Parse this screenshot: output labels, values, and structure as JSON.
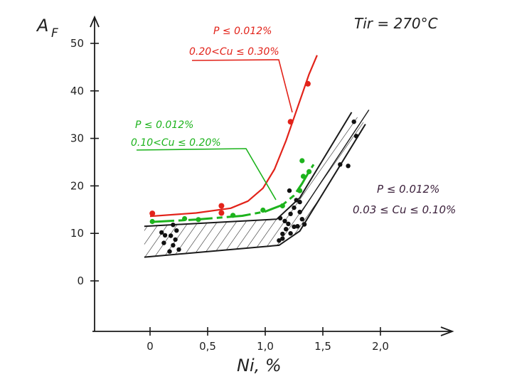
{
  "chart_data": {
    "type": "scatter",
    "title": "T_ir = 270°C",
    "title_text": "Tir = 270°C",
    "xlabel": "Ni, %",
    "ylabel": "A_F",
    "ylabel_main": "A",
    "ylabel_sub": "F",
    "xlim": [
      -0.4,
      2.6
    ],
    "ylim": [
      -10,
      55
    ],
    "x_ticks": [
      0,
      0.5,
      1.0,
      1.5,
      2.0
    ],
    "x_tick_labels": [
      "0",
      "0,5",
      "1,0",
      "1,5",
      "2,0"
    ],
    "y_ticks": [
      0,
      10,
      20,
      30,
      40,
      50
    ],
    "y_tick_labels": [
      "0",
      "10",
      "20",
      "30",
      "40",
      "50"
    ],
    "grid": false,
    "series": [
      {
        "name": "P ≤ 0.012%, 0.20 < Cu ≤ 0.30%",
        "label_line1": "P ≤ 0.012%",
        "label_line2": "0.20<Cu ≤ 0.30%",
        "color": "#e2231a",
        "points": [
          [
            0.02,
            14.2
          ],
          [
            0.62,
            15.8
          ],
          [
            0.62,
            14.3
          ],
          [
            1.22,
            33.5
          ],
          [
            1.37,
            41.5
          ]
        ],
        "trend": [
          [
            0.0,
            13.6
          ],
          [
            0.4,
            14.3
          ],
          [
            0.7,
            15.3
          ],
          [
            0.85,
            16.8
          ],
          [
            0.98,
            19.5
          ],
          [
            1.08,
            23.5
          ],
          [
            1.18,
            29.5
          ],
          [
            1.28,
            36.5
          ],
          [
            1.38,
            43.5
          ],
          [
            1.45,
            47.5
          ]
        ]
      },
      {
        "name": "P ≤ 0.012%, 0.10 < Cu ≤ 0.20%",
        "label_line1": "P ≤ 0.012%",
        "label_line2": "0.10<Cu ≤ 0.20%",
        "color": "#1db31d",
        "points": [
          [
            0.02,
            12.5
          ],
          [
            0.3,
            13.1
          ],
          [
            0.42,
            12.9
          ],
          [
            0.72,
            13.8
          ],
          [
            0.98,
            14.9
          ],
          [
            1.15,
            15.8
          ],
          [
            1.3,
            19.0
          ],
          [
            1.33,
            22.0
          ],
          [
            1.38,
            23.0
          ],
          [
            1.32,
            25.3
          ]
        ],
        "trend": [
          [
            0.0,
            12.4
          ],
          [
            0.4,
            12.9
          ],
          [
            0.8,
            13.7
          ],
          [
            1.0,
            14.6
          ],
          [
            1.15,
            16.0
          ],
          [
            1.25,
            18.0
          ],
          [
            1.32,
            20.5
          ],
          [
            1.38,
            23.0
          ],
          [
            1.42,
            24.5
          ]
        ]
      },
      {
        "name": "P ≤ 0.012%, 0.03 ≤ Cu ≤ 0.10%",
        "label_line1": "P ≤ 0.012%",
        "label_line2": "0.03 ≤ Cu ≤ 0.10%",
        "color": "#111111",
        "points": [
          [
            0.1,
            10.2
          ],
          [
            0.2,
            11.8
          ],
          [
            0.18,
            9.5
          ],
          [
            0.22,
            8.7
          ],
          [
            0.12,
            8.0
          ],
          [
            0.2,
            7.5
          ],
          [
            0.25,
            6.6
          ],
          [
            0.17,
            6.2
          ],
          [
            0.23,
            10.6
          ],
          [
            0.13,
            9.6
          ],
          [
            1.12,
            8.5
          ],
          [
            1.15,
            9.9
          ],
          [
            1.18,
            10.9
          ],
          [
            1.2,
            12.0
          ],
          [
            1.13,
            13.2
          ],
          [
            1.22,
            14.1
          ],
          [
            1.25,
            15.4
          ],
          [
            1.27,
            17.0
          ],
          [
            1.3,
            16.6
          ],
          [
            1.3,
            14.5
          ],
          [
            1.32,
            13.0
          ],
          [
            1.25,
            11.4
          ],
          [
            1.22,
            10.0
          ],
          [
            1.17,
            12.6
          ],
          [
            1.21,
            19.0
          ],
          [
            1.28,
            11.5
          ],
          [
            1.34,
            11.9
          ],
          [
            1.15,
            8.9
          ],
          [
            1.65,
            24.5
          ],
          [
            1.72,
            24.2
          ],
          [
            1.79,
            30.5
          ],
          [
            1.77,
            33.5
          ]
        ],
        "band_upper": [
          [
            -0.05,
            11.5
          ],
          [
            1.1,
            13.0
          ],
          [
            1.3,
            17.5
          ],
          [
            1.75,
            35.5
          ]
        ],
        "band_lower": [
          [
            -0.05,
            5.0
          ],
          [
            1.12,
            7.5
          ],
          [
            1.3,
            10.5
          ],
          [
            1.87,
            33.0
          ]
        ]
      }
    ]
  }
}
